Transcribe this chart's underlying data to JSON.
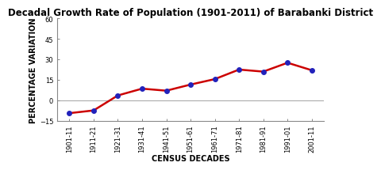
{
  "title": "Decadal Growth Rate of Population (1901-2011) of Barabanki District",
  "xlabel": "CENSUS DECADES",
  "ylabel": "PERCENTAGE VARIATION",
  "categories": [
    "1901-11",
    "1911-21",
    "1921-31",
    "1931-41",
    "1941-51",
    "1951-61",
    "1961-71",
    "1971-81",
    "1981-91",
    "1991-01",
    "2001-11"
  ],
  "values": [
    -9.5,
    -7.5,
    3.5,
    8.5,
    7.0,
    11.5,
    15.5,
    22.5,
    21.0,
    27.5,
    22.0
  ],
  "line_color": "#cc0000",
  "marker_color": "#2222bb",
  "marker_style": "o",
  "marker_size": 4,
  "line_width": 1.8,
  "ylim": [
    -15,
    60
  ],
  "yticks": [
    -15,
    0,
    15,
    30,
    45,
    60
  ],
  "zero_line_color": "#aaaaaa",
  "background_color": "#ffffff",
  "title_fontsize": 8.5,
  "axis_label_fontsize": 7,
  "tick_fontsize": 6
}
